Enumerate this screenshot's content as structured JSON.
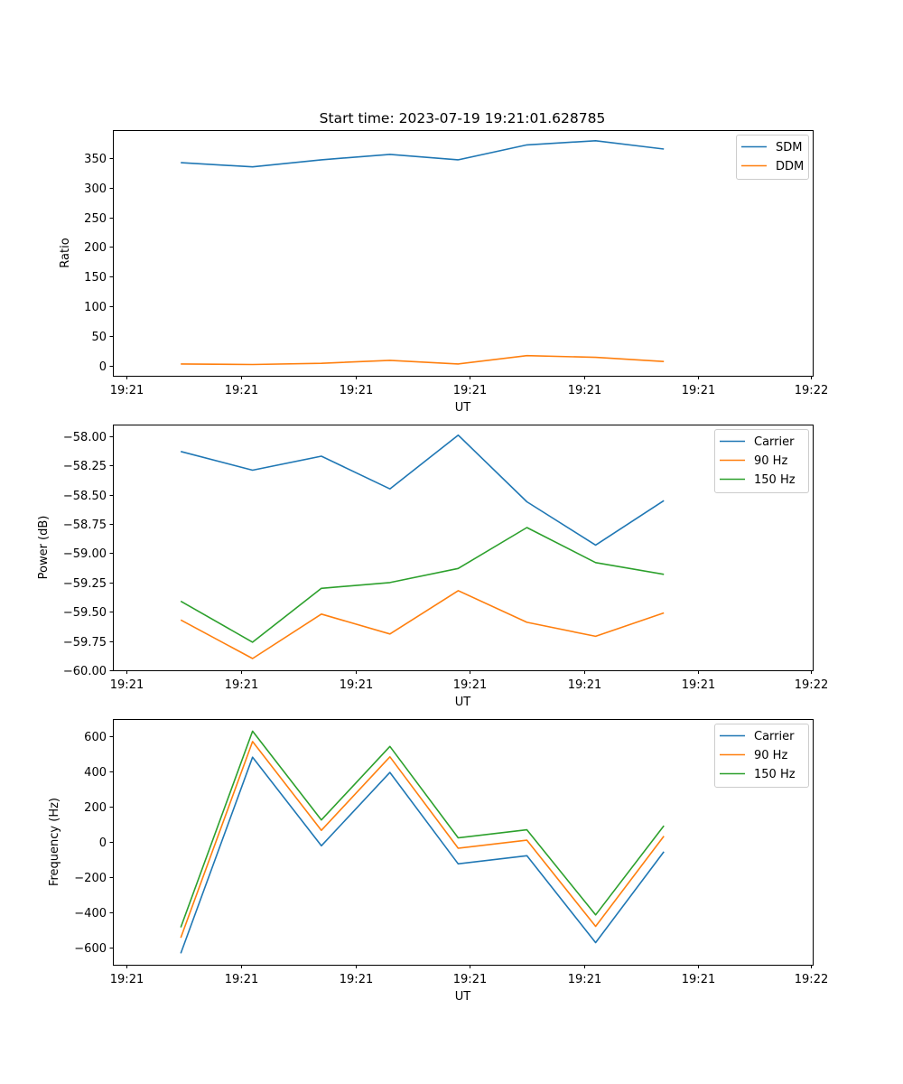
{
  "figure": {
    "title": "Start time: 2023-07-19 19:21:01.628785"
  },
  "colors": {
    "blue": "#1f77b4",
    "orange": "#ff7f0e",
    "green": "#2ca02c"
  },
  "chart_data": [
    {
      "type": "line",
      "name": "ratio",
      "title": "Start time: 2023-07-19 19:21:01.628785",
      "xlabel": "UT",
      "ylabel": "Ratio",
      "x": [
        0.5,
        1.1,
        1.7,
        2.3,
        2.9,
        3.5,
        4.1,
        4.7
      ],
      "xlim": [
        0,
        5.6
      ],
      "xticks": [
        0.05,
        1.0,
        2.0,
        3.0,
        4.0,
        5.0,
        6.0
      ],
      "xtick_labels": [
        "19:21",
        "19:21",
        "19:21",
        "19:21",
        "19:21",
        "19:21",
        "19:22"
      ],
      "ylim": [
        -17,
        397
      ],
      "yticks": [
        0,
        50,
        100,
        150,
        200,
        250,
        300,
        350
      ],
      "ytick_labels": [
        "0",
        "50",
        "100",
        "150",
        "200",
        "250",
        "300",
        "350"
      ],
      "legend": "top-right",
      "series": [
        {
          "name": "SDM",
          "color": "#1f77b4",
          "values": [
            342,
            335,
            347,
            356,
            347,
            372,
            379,
            365
          ]
        },
        {
          "name": "DDM",
          "color": "#ff7f0e",
          "values": [
            3,
            2,
            4,
            9,
            3,
            17,
            14,
            7
          ]
        }
      ]
    },
    {
      "type": "line",
      "name": "power",
      "xlabel": "UT",
      "ylabel": "Power (dB)",
      "x": [
        0.5,
        1.1,
        1.7,
        2.3,
        2.9,
        3.5,
        4.1,
        4.7
      ],
      "xlim": [
        0,
        5.6
      ],
      "xticks": [
        0.05,
        1.0,
        2.0,
        3.0,
        4.0,
        5.0,
        6.0
      ],
      "xtick_labels": [
        "19:21",
        "19:21",
        "19:21",
        "19:21",
        "19:21",
        "19:21",
        "19:22"
      ],
      "ylim": [
        -60.0,
        -57.9
      ],
      "yticks": [
        -60.0,
        -59.75,
        -59.5,
        -59.25,
        -59.0,
        -58.75,
        -58.5,
        -58.25,
        -58.0
      ],
      "ytick_labels": [
        "−60.00",
        "−59.75",
        "−59.50",
        "−59.25",
        "−59.00",
        "−58.75",
        "−58.50",
        "−58.25",
        "−58.00"
      ],
      "legend": "top-right",
      "series": [
        {
          "name": "Carrier",
          "color": "#1f77b4",
          "values": [
            -58.13,
            -58.29,
            -58.17,
            -58.45,
            -57.99,
            -58.56,
            -58.93,
            -58.55
          ]
        },
        {
          "name": "90 Hz",
          "color": "#ff7f0e",
          "values": [
            -59.57,
            -59.9,
            -59.52,
            -59.69,
            -59.32,
            -59.59,
            -59.71,
            -59.51
          ]
        },
        {
          "name": "150 Hz",
          "color": "#2ca02c",
          "values": [
            -59.41,
            -59.76,
            -59.3,
            -59.25,
            -59.13,
            -58.78,
            -59.08,
            -59.18
          ]
        }
      ]
    },
    {
      "type": "line",
      "name": "frequency",
      "xlabel": "UT",
      "ylabel": "Frequency (Hz)",
      "x": [
        0.5,
        1.1,
        1.7,
        2.3,
        2.9,
        3.5,
        4.1,
        4.7
      ],
      "xlim": [
        0,
        5.6
      ],
      "xticks": [
        0.05,
        1.0,
        2.0,
        3.0,
        4.0,
        5.0,
        6.0
      ],
      "xtick_labels": [
        "19:21",
        "19:21",
        "19:21",
        "19:21",
        "19:21",
        "19:21",
        "19:22"
      ],
      "ylim": [
        -700,
        700
      ],
      "yticks": [
        -600,
        -400,
        -200,
        0,
        200,
        400,
        600
      ],
      "ytick_labels": [
        "−600",
        "−400",
        "−200",
        "0",
        "200",
        "400",
        "600"
      ],
      "legend": "top-right",
      "series": [
        {
          "name": "Carrier",
          "color": "#1f77b4",
          "values": [
            -635,
            483,
            -22,
            396,
            -125,
            -79,
            -574,
            -56
          ]
        },
        {
          "name": "90 Hz",
          "color": "#ff7f0e",
          "values": [
            -546,
            572,
            66,
            485,
            -36,
            10,
            -481,
            33
          ]
        },
        {
          "name": "150 Hz",
          "color": "#2ca02c",
          "values": [
            -487,
            631,
            125,
            544,
            23,
            69,
            -416,
            92
          ]
        }
      ]
    }
  ]
}
